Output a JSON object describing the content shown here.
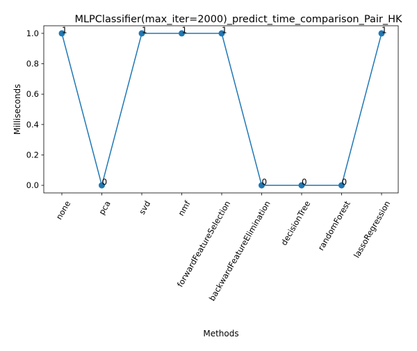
{
  "chart_data": {
    "type": "line",
    "title": "MLPClassifier(max_iter=2000)_predict_time_comparison_Pair_HK",
    "xlabel": "Methods",
    "ylabel": "Milliseconds",
    "categories": [
      "none",
      "pca",
      "svd",
      "nmf",
      "forwardFeatureSelection",
      "backwardFeatureElimination",
      "decisionTree",
      "randomForest",
      "lassoRegression"
    ],
    "series": [
      {
        "values": [
          1,
          0,
          1,
          1,
          1,
          0,
          0,
          0,
          1
        ],
        "color": "#1f77b4",
        "marker": "circle"
      }
    ],
    "data_labels": [
      "1",
      "0",
      "1",
      "1",
      "1",
      "0",
      "0",
      "0",
      "1"
    ],
    "ylim": [
      -0.05,
      1.05
    ],
    "yticks": [
      "0.0",
      "0.2",
      "0.4",
      "0.6",
      "0.8",
      "1.0"
    ],
    "ytick_values": [
      0.0,
      0.2,
      0.4,
      0.6,
      0.8,
      1.0
    ],
    "grid": false,
    "legend": "none",
    "xtick_rotation": 60
  }
}
